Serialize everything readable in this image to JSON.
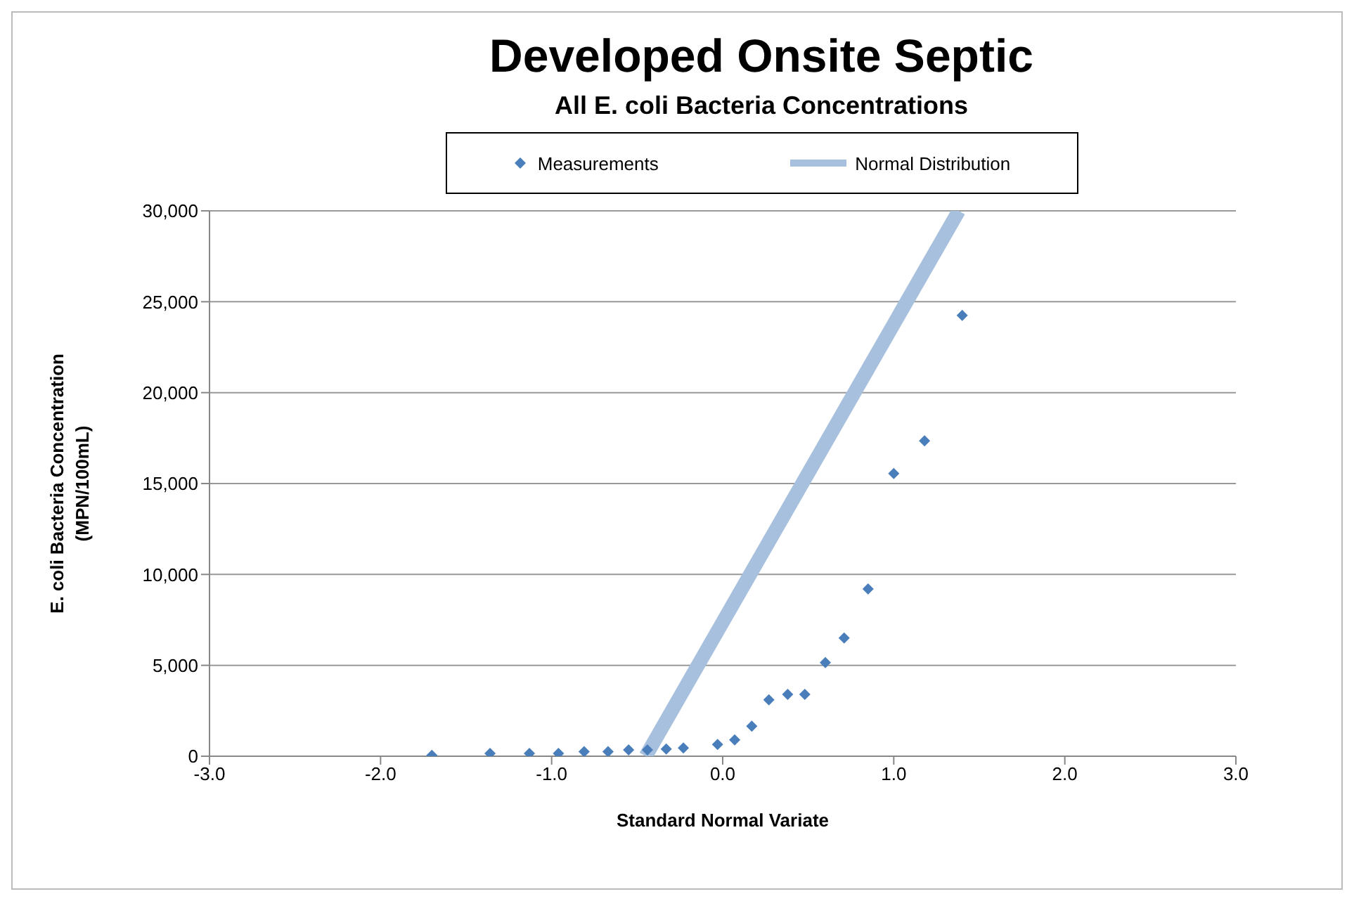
{
  "chart_data": {
    "type": "scatter",
    "title": "Developed Onsite Septic",
    "subtitle": "All E. coli Bacteria Concentrations",
    "xlabel": "Standard Normal Variate",
    "ylabel": "E. coli Bacteria Concentration (MPN/100mL)",
    "xlim": [
      -3,
      3
    ],
    "xticks": [
      {
        "value": -3,
        "label": "-3.0"
      },
      {
        "value": -2,
        "label": "-2.0"
      },
      {
        "value": -1,
        "label": "-1.0"
      },
      {
        "value": 0,
        "label": "0.0"
      },
      {
        "value": 1,
        "label": "1.0"
      },
      {
        "value": 2,
        "label": "2.0"
      },
      {
        "value": 3,
        "label": "3.0"
      }
    ],
    "ylim": [
      0,
      30000
    ],
    "yticks": [
      {
        "value": 0,
        "label": "0"
      },
      {
        "value": 5000,
        "label": "5,000"
      },
      {
        "value": 10000,
        "label": "10,000"
      },
      {
        "value": 15000,
        "label": "15,000"
      },
      {
        "value": 20000,
        "label": "20,000"
      },
      {
        "value": 25000,
        "label": "25,000"
      },
      {
        "value": 30000,
        "label": "30,000"
      }
    ],
    "grid": "y",
    "legend": "top",
    "series": [
      {
        "name": "Measurements",
        "marker": "diamond",
        "color": "#4a7ebb",
        "x": [
          -1.7,
          -1.36,
          -1.13,
          -0.96,
          -0.81,
          -0.67,
          -0.55,
          -0.44,
          -0.33,
          -0.23,
          -0.03,
          0.07,
          0.17,
          0.27,
          0.38,
          0.48,
          0.6,
          0.71,
          0.85,
          1.0,
          1.18,
          1.4
        ],
        "values": [
          50,
          150,
          150,
          150,
          250,
          250,
          350,
          350,
          400,
          450,
          650,
          900,
          1650,
          3100,
          3400,
          3400,
          5150,
          6500,
          9200,
          15550,
          17350,
          24250
        ]
      },
      {
        "name": "Normal Distribution",
        "type": "line",
        "color": "#a7c0de",
        "x": [
          -0.45,
          1.38
        ],
        "values": [
          0,
          30000
        ]
      }
    ]
  }
}
